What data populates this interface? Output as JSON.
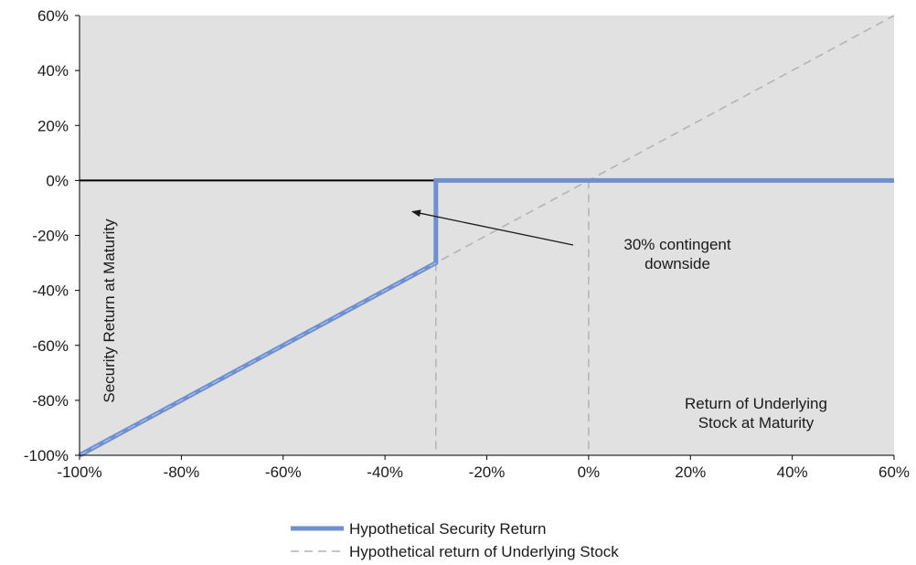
{
  "chart_data": {
    "type": "line",
    "title": "",
    "xlabel": "Return of Underlying Stock at Maturity",
    "ylabel": "Security Return at Maturity",
    "xlim": [
      -100,
      60
    ],
    "ylim": [
      -100,
      60
    ],
    "x_ticks": [
      -100,
      -80,
      -60,
      -40,
      -20,
      0,
      20,
      40,
      60
    ],
    "y_ticks": [
      -100,
      -80,
      -60,
      -40,
      -20,
      0,
      20,
      40,
      60
    ],
    "x_tick_labels": [
      "-100%",
      "-80%",
      "-60%",
      "-40%",
      "-20%",
      "0%",
      "20%",
      "40%",
      "60%"
    ],
    "y_tick_labels": [
      "-100%",
      "-80%",
      "-60%",
      "-40%",
      "-20%",
      "0%",
      "20%",
      "40%",
      "60%"
    ],
    "grid": false,
    "legend_position": "bottom",
    "series": [
      {
        "name": "Hypothetical Security Return",
        "color": "#6f8fcf",
        "style": "solid",
        "points": [
          [
            -100,
            -100
          ],
          [
            -30,
            -30
          ],
          [
            -30,
            0
          ],
          [
            60,
            0
          ]
        ]
      },
      {
        "name": "Hypothetical return of Underlying Stock",
        "color": "#b3b3b3",
        "style": "dashed",
        "points": [
          [
            -100,
            -100
          ],
          [
            60,
            60
          ]
        ]
      }
    ],
    "reference_lines": [
      {
        "orientation": "horizontal",
        "value": 0,
        "color": "#000000",
        "style": "solid"
      },
      {
        "orientation": "vertical",
        "value": -30,
        "color": "#b3b3b3",
        "style": "dashed"
      },
      {
        "orientation": "vertical",
        "value": 0,
        "color": "#b3b3b3",
        "style": "dashed"
      }
    ],
    "annotations": [
      {
        "lines": [
          "30% contingent",
          "downside"
        ],
        "arrow_to": [
          -35,
          -10
        ]
      }
    ],
    "plot_background": "#e1e1e1"
  }
}
